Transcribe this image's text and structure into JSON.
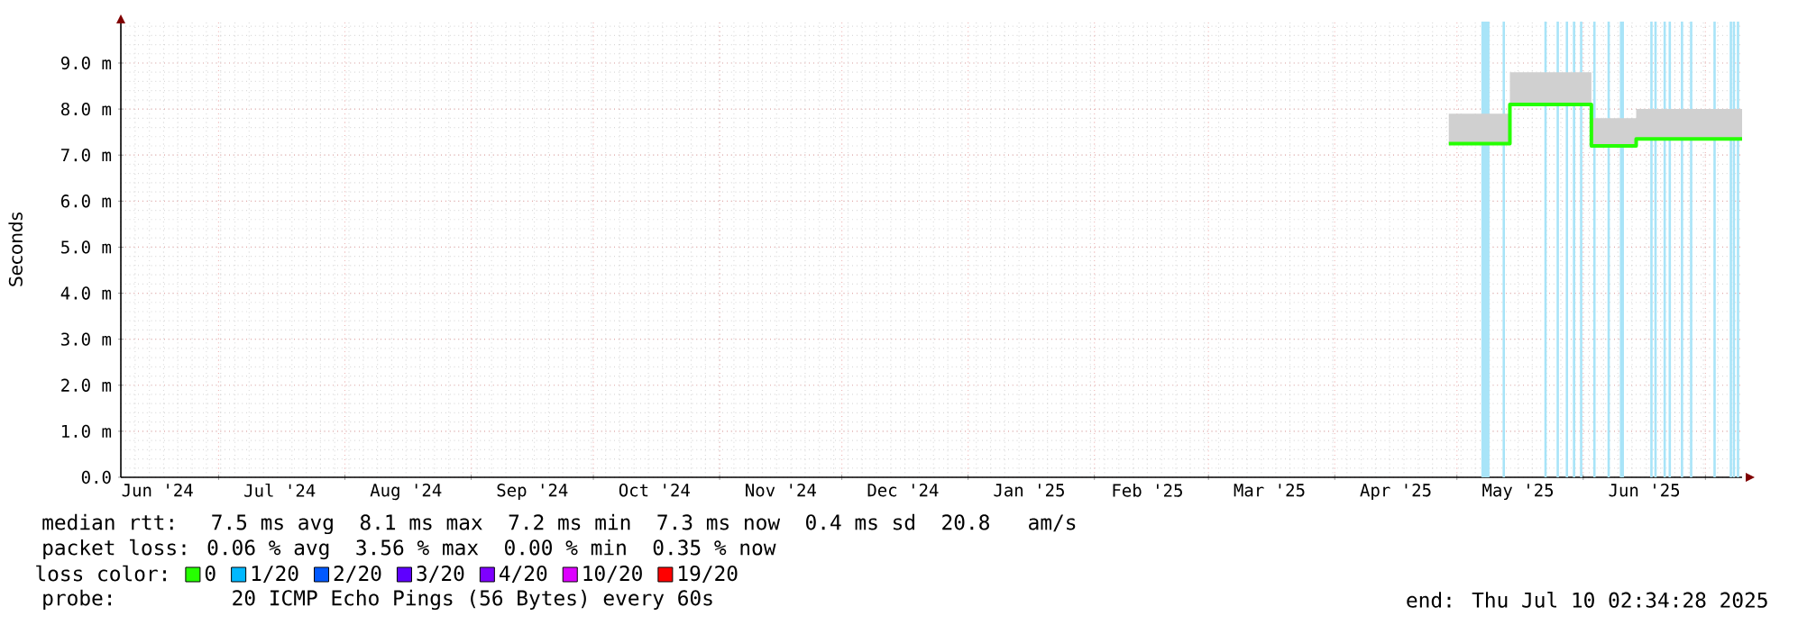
{
  "chart_data": {
    "type": "step",
    "ylabel": "Seconds",
    "x": [
      "2025-04-29",
      "2025-05-14",
      "2025-06-03",
      "2025-06-14",
      "2025-07-10"
    ],
    "series": [
      {
        "name": "0",
        "color": "#26ff00",
        "values": [
          7.25,
          8.1,
          7.2,
          7.35,
          7.35
        ],
        "lower": [
          7.25,
          8.1,
          7.2,
          7.35,
          7.35
        ],
        "upper": [
          7.9,
          8.8,
          7.8,
          8.0,
          8.0
        ]
      },
      {
        "name": "1/20",
        "color": "#00b8ff",
        "values": [
          null,
          null,
          null,
          null,
          null
        ]
      },
      {
        "name": "2/20",
        "color": "#0059ff",
        "values": [
          null,
          null,
          null,
          null,
          null
        ]
      },
      {
        "name": "3/20",
        "color": "#5e00ff",
        "values": [
          null,
          null,
          null,
          null,
          null
        ]
      },
      {
        "name": "4/20",
        "color": "#7e00ff",
        "values": [
          null,
          null,
          null,
          null,
          null
        ]
      },
      {
        "name": "10/20",
        "color": "#dd00ff",
        "values": [
          null,
          null,
          null,
          null,
          null
        ]
      },
      {
        "name": "19/20",
        "color": "#ff0000",
        "values": [
          null,
          null,
          null,
          null,
          null
        ]
      }
    ],
    "legend": "bottom",
    "legend_title": "loss color:",
    "xlim": [
      "2024-06-07",
      "2025-07-10"
    ],
    "xticks": [
      {
        "value": "2024-07-01",
        "label": null
      },
      {
        "value": "2024-08-01",
        "label": null
      },
      {
        "value": "2024-09-01",
        "label": null
      },
      {
        "value": "2024-10-01",
        "label": null
      },
      {
        "value": "2024-11-01",
        "label": null
      },
      {
        "value": "2024-12-01",
        "label": null
      },
      {
        "value": "2025-01-01",
        "label": null
      },
      {
        "value": "2025-02-01",
        "label": null
      },
      {
        "value": "2025-03-01",
        "label": null
      },
      {
        "value": "2025-04-01",
        "label": null
      },
      {
        "value": "2025-05-01",
        "label": null
      },
      {
        "value": "2025-06-01",
        "label": null
      },
      {
        "value": "2025-07-01",
        "label": null
      },
      {
        "value": "2024-06-16",
        "label": "Jun '24"
      },
      {
        "value": "2024-07-16",
        "label": "Jul '24"
      },
      {
        "value": "2024-08-16",
        "label": "Aug '24"
      },
      {
        "value": "2024-09-16",
        "label": "Sep '24"
      },
      {
        "value": "2024-10-16",
        "label": "Oct '24"
      },
      {
        "value": "2024-11-16",
        "label": "Nov '24"
      },
      {
        "value": "2024-12-16",
        "label": "Dec '24"
      },
      {
        "value": "2025-01-16",
        "label": "Jan '25"
      },
      {
        "value": "2025-02-14",
        "label": "Feb '25"
      },
      {
        "value": "2025-03-16",
        "label": "Mar '25"
      },
      {
        "value": "2025-04-16",
        "label": "Apr '25"
      },
      {
        "value": "2025-05-16",
        "label": "May '25"
      },
      {
        "value": "2025-06-16",
        "label": "Jun '25"
      }
    ],
    "ylim": [
      0,
      9.9
    ],
    "yticks": [
      {
        "value": 0,
        "label": "0.0"
      },
      {
        "value": 1,
        "label": "1.0 m"
      },
      {
        "value": 2,
        "label": "2.0 m"
      },
      {
        "value": 3,
        "label": "3.0 m"
      },
      {
        "value": 4,
        "label": "4.0 m"
      },
      {
        "value": 5,
        "label": "5.0 m"
      },
      {
        "value": 6,
        "label": "6.0 m"
      },
      {
        "value": 7,
        "label": "7.0 m"
      },
      {
        "value": 8,
        "label": "8.0 m"
      },
      {
        "value": 9,
        "label": "9.0 m"
      }
    ],
    "grid": true,
    "bands": [
      {
        "axis": "x",
        "from": "2025-05-07",
        "to": "2025-05-09",
        "color": "#a8e4f8"
      },
      {
        "axis": "x",
        "from": "2025-06-10",
        "to": "2025-06-11",
        "color": "#a8e4f8"
      }
    ],
    "ref_lines": [
      {
        "axis": "x",
        "value": "2025-05-12T12:00",
        "color": "#a8e4f8"
      },
      {
        "axis": "x",
        "value": "2025-05-22T18:00",
        "color": "#a8e4f8"
      },
      {
        "axis": "x",
        "value": "2025-05-25T18:00",
        "color": "#a8e4f8"
      },
      {
        "axis": "x",
        "value": "2025-05-28",
        "color": "#a8e4f8"
      },
      {
        "axis": "x",
        "value": "2025-05-29T18:00",
        "color": "#a8e4f8"
      },
      {
        "axis": "x",
        "value": "2025-05-31T12:00",
        "color": "#a8e4f8"
      },
      {
        "axis": "x",
        "value": "2025-06-03T18:00",
        "color": "#a8e4f8"
      },
      {
        "axis": "x",
        "value": "2025-06-07T06:00",
        "color": "#a8e4f8"
      },
      {
        "axis": "x",
        "value": "2025-06-17T18:00",
        "color": "#a8e4f8"
      },
      {
        "axis": "x",
        "value": "2025-06-18T18:00",
        "color": "#a8e4f8"
      },
      {
        "axis": "x",
        "value": "2025-06-21",
        "color": "#a8e4f8"
      },
      {
        "axis": "x",
        "value": "2025-06-22T06:00",
        "color": "#a8e4f8"
      },
      {
        "axis": "x",
        "value": "2025-06-25T06:00",
        "color": "#a8e4f8"
      },
      {
        "axis": "x",
        "value": "2025-06-27T12:00",
        "color": "#a8e4f8"
      },
      {
        "axis": "x",
        "value": "2025-07-03T06:00",
        "color": "#a8e4f8"
      },
      {
        "axis": "x",
        "value": "2025-07-07T06:00",
        "color": "#a8e4f8"
      },
      {
        "axis": "x",
        "value": "2025-07-08",
        "color": "#a8e4f8"
      },
      {
        "axis": "x",
        "value": "2025-07-09",
        "color": "#a8e4f8"
      }
    ],
    "annotations": [
      "median rtt:  7.5 ms avg  8.1 ms max  7.2 ms min  7.3 ms now  0.4 ms sd  20.8   am/s",
      "packet loss: 0.06 % avg  3.56 % max  0.00 % min  0.35 % now",
      "probe:       20 ICMP Echo Pings (56 Bytes) every 60s",
      "end: Thu Jul 10 02:34:28 2025"
    ]
  }
}
